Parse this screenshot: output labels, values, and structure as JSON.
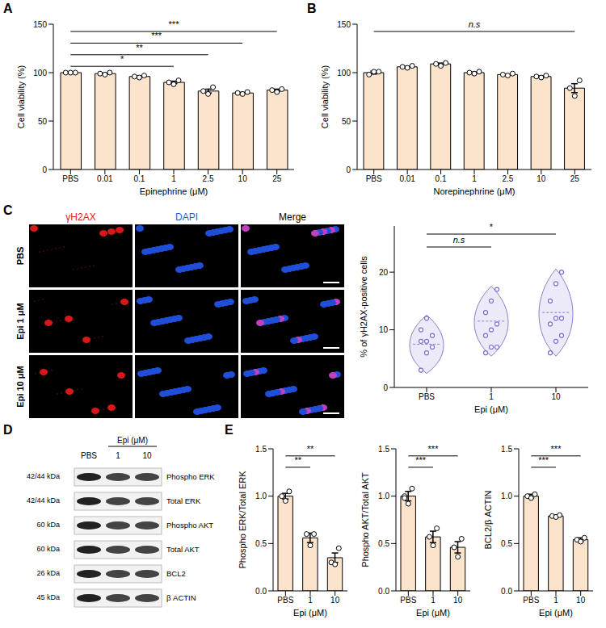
{
  "chart_data": [
    {
      "panel": "A",
      "type": "bar",
      "y_label": "Cell viability (%)",
      "x_label": "Epinephrine (μM)",
      "categories": [
        "PBS",
        "0.01",
        "0.1",
        "1",
        "2.5",
        "10",
        "25"
      ],
      "values": [
        100,
        99,
        96,
        90,
        81,
        79,
        82
      ],
      "errors": [
        0.5,
        0.6,
        0.6,
        1.2,
        2,
        0.7,
        1
      ],
      "points": [
        [
          100,
          100,
          100
        ],
        [
          99,
          98,
          100
        ],
        [
          96,
          95,
          97
        ],
        [
          90,
          88,
          92
        ],
        [
          81,
          78,
          85
        ],
        [
          79,
          78,
          80
        ],
        [
          82,
          80,
          83
        ]
      ],
      "color": "#fce3cc",
      "ylim": [
        0,
        150
      ],
      "yticks": [
        0,
        50,
        100,
        150
      ],
      "significance": [
        {
          "from": "PBS",
          "to": "1",
          "label": "*"
        },
        {
          "from": "PBS",
          "to": "2.5",
          "label": "**"
        },
        {
          "from": "PBS",
          "to": "10",
          "label": "***"
        },
        {
          "from": "PBS",
          "to": "25",
          "label": "***"
        }
      ]
    },
    {
      "panel": "B",
      "type": "bar",
      "y_label": "Cell viability (%)",
      "x_label": "Norepinephrine (μM)",
      "categories": [
        "PBS",
        "0.01",
        "0.1",
        "1",
        "2.5",
        "10",
        "25"
      ],
      "values": [
        100,
        106,
        109,
        100,
        98,
        96,
        84
      ],
      "errors": [
        1.5,
        0.6,
        0.9,
        0.6,
        0.6,
        0.6,
        4.6
      ],
      "points": [
        [
          98,
          101,
          101
        ],
        [
          106,
          105,
          107
        ],
        [
          109,
          107,
          110
        ],
        [
          100,
          99,
          101
        ],
        [
          98,
          97,
          99
        ],
        [
          96,
          95,
          97
        ],
        [
          84,
          76,
          92
        ]
      ],
      "color": "#fce3cc",
      "ylim": [
        0,
        150
      ],
      "yticks": [
        0,
        50,
        100,
        150
      ],
      "significance": [
        {
          "from": "PBS",
          "to": "25",
          "label": "n.s"
        }
      ]
    },
    {
      "type": "violin",
      "y_label": "% of γH2AX-positive cells",
      "x_label": "Epi (μM)",
      "categories": [
        "PBS",
        "1",
        "10"
      ],
      "points": [
        [
          3,
          6,
          7,
          8,
          8,
          9,
          10,
          12
        ],
        [
          6,
          7,
          7,
          9,
          10,
          11,
          13,
          15,
          17
        ],
        [
          6,
          8,
          9,
          11,
          12,
          12,
          15,
          18,
          20
        ]
      ],
      "color": "#7b6fd6",
      "ylim": [
        0,
        28
      ],
      "yticks": [
        0,
        10,
        20
      ],
      "significance": [
        {
          "from": "PBS",
          "to": "1",
          "label": "n.s"
        },
        {
          "from": "PBS",
          "to": "10",
          "label": "*"
        }
      ]
    },
    {
      "panel": "E",
      "type": "bar",
      "y_label": "Phospho ERK/Total ERK",
      "x_label": "Epi (μM)",
      "categories": [
        "PBS",
        "1",
        "10"
      ],
      "values": [
        1.0,
        0.56,
        0.35
      ],
      "errors": [
        0.03,
        0.05,
        0.05
      ],
      "points": [
        [
          1.0,
          0.95,
          1.05
        ],
        [
          0.6,
          0.48,
          0.6
        ],
        [
          0.3,
          0.28,
          0.45
        ]
      ],
      "color": "#fce3cc",
      "ylim": [
        0,
        1.5
      ],
      "yticks": [
        {
          "value": 0,
          "label": "0.0"
        },
        {
          "value": 0.5,
          "label": "0.5"
        },
        {
          "value": 1,
          "label": "1.0"
        },
        {
          "value": 1.5,
          "label": "1.5"
        }
      ],
      "significance": [
        {
          "from": "PBS",
          "to": "1",
          "label": "**"
        },
        {
          "from": "PBS",
          "to": "10",
          "label": "**"
        }
      ]
    },
    {
      "type": "bar",
      "y_label": "Phospho AKT/Total AKT",
      "x_label": "Epi (μM)",
      "categories": [
        "PBS",
        "1",
        "10"
      ],
      "values": [
        1.0,
        0.57,
        0.46
      ],
      "errors": [
        0.05,
        0.06,
        0.06
      ],
      "points": [
        [
          1.0,
          0.92,
          1.08,
          0.98
        ],
        [
          0.57,
          0.48,
          0.66
        ],
        [
          0.46,
          0.36,
          0.55
        ]
      ],
      "color": "#fce3cc",
      "ylim": [
        0,
        1.5
      ],
      "yticks": [
        {
          "value": 0,
          "label": "0.0"
        },
        {
          "value": 0.5,
          "label": "0.5"
        },
        {
          "value": 1,
          "label": "1.0"
        },
        {
          "value": 1.5,
          "label": "1.5"
        }
      ],
      "significance": [
        {
          "from": "PBS",
          "to": "1",
          "label": "***"
        },
        {
          "from": "PBS",
          "to": "10",
          "label": "***"
        }
      ]
    },
    {
      "type": "bar",
      "y_label": "BCL2/β ACTIN",
      "x_label": "Epi (μM)",
      "categories": [
        "PBS",
        "1",
        "10"
      ],
      "values": [
        1.0,
        0.79,
        0.54
      ],
      "errors": [
        0.02,
        0.01,
        0.02
      ],
      "points": [
        [
          1.0,
          0.98,
          1.02
        ],
        [
          0.79,
          0.78,
          0.8
        ],
        [
          0.54,
          0.52,
          0.56
        ]
      ],
      "color": "#fce3cc",
      "ylim": [
        0,
        1.5
      ],
      "yticks": [
        {
          "value": 0,
          "label": "0.0"
        },
        {
          "value": 0.5,
          "label": "0.5"
        },
        {
          "value": 1,
          "label": "1.0"
        },
        {
          "value": 1.5,
          "label": "1.5"
        }
      ],
      "significance": [
        {
          "from": "PBS",
          "to": "1",
          "label": "***"
        },
        {
          "from": "PBS",
          "to": "10",
          "label": "***"
        }
      ]
    }
  ],
  "microscopy": {
    "panel": "C",
    "columns": [
      {
        "label": "γH2AX",
        "color": "#e02020"
      },
      {
        "label": "DAPI",
        "color": "#1f5fd0"
      },
      {
        "label": "Merge",
        "color": "#000000"
      }
    ],
    "rows": [
      "PBS",
      "Epi 1 μM",
      "Epi 10 μM"
    ]
  },
  "western_blot": {
    "panel": "D",
    "header": "Epi (μM)",
    "lanes": [
      "PBS",
      "1",
      "10"
    ],
    "rows": [
      {
        "kda": "42/44 kDa",
        "protein": "Phospho ERK"
      },
      {
        "kda": "42/44 kDa",
        "protein": "Total ERK"
      },
      {
        "kda": "60 kDa",
        "protein": "Phospho AKT"
      },
      {
        "kda": "60 kDa",
        "protein": "Total AKT"
      },
      {
        "kda": "26 kDa",
        "protein": "BCL2"
      },
      {
        "kda": "45 kDa",
        "protein": "β ACTIN"
      }
    ]
  }
}
